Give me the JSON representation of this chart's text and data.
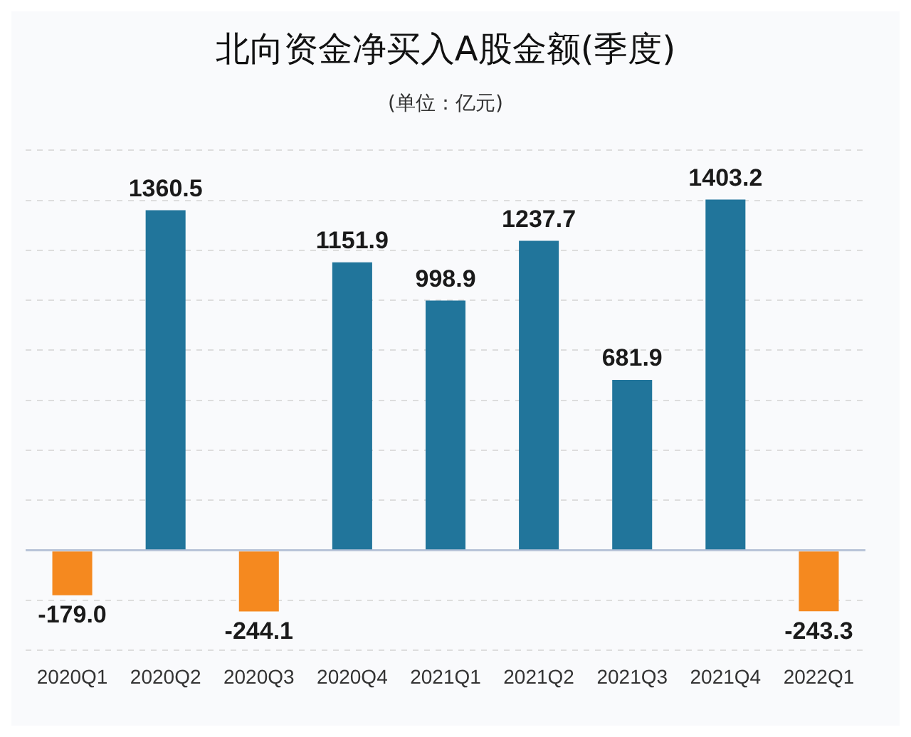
{
  "chart_data": {
    "type": "bar",
    "title": "北向资金净买入A股金额(季度)",
    "subtitle": "(单位：亿元)",
    "categories": [
      "2020Q1",
      "2020Q2",
      "2020Q3",
      "2020Q4",
      "2021Q1",
      "2021Q2",
      "2021Q3",
      "2021Q4",
      "2022Q1"
    ],
    "values": [
      -179.0,
      1360.5,
      -244.1,
      1151.9,
      998.9,
      1237.7,
      681.9,
      1403.2,
      -243.3
    ],
    "colors": [
      "#f5891f",
      "#21759b",
      "#f5891f",
      "#21759b",
      "#21759b",
      "#21759b",
      "#21759b",
      "#21759b",
      "#f5891f"
    ],
    "ylim": [
      -400,
      1600
    ],
    "yticks": [
      {
        "value": -400,
        "label": null
      },
      {
        "value": -200,
        "label": null
      },
      {
        "value": 0,
        "label": null
      },
      {
        "value": 200,
        "label": null
      },
      {
        "value": 400,
        "label": null
      },
      {
        "value": 600,
        "label": null
      },
      {
        "value": 800,
        "label": null
      },
      {
        "value": 1000,
        "label": null
      },
      {
        "value": 1200,
        "label": null
      },
      {
        "value": 1400,
        "label": null
      },
      {
        "value": 1600,
        "label": null
      }
    ],
    "value_labels": [
      "-179.0",
      "1360.5",
      "-244.1",
      "1151.9",
      "998.9",
      "1237.7",
      "681.9",
      "1403.2",
      "-243.3"
    ],
    "tick_labels": "x",
    "grid": "y",
    "legend": false
  }
}
